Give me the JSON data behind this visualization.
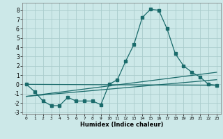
{
  "xlabel": "Humidex (Indice chaleur)",
  "bg_color": "#cce8e8",
  "grid_color": "#aacccc",
  "line_color": "#1a6b6b",
  "xlim": [
    -0.5,
    23.5
  ],
  "ylim": [
    -3.2,
    8.8
  ],
  "xticks": [
    0,
    1,
    2,
    3,
    4,
    5,
    6,
    7,
    8,
    9,
    10,
    11,
    12,
    13,
    14,
    15,
    16,
    17,
    18,
    19,
    20,
    21,
    22,
    23
  ],
  "yticks": [
    -3,
    -2,
    -1,
    0,
    1,
    2,
    3,
    4,
    5,
    6,
    7,
    8
  ],
  "series1_x": [
    0,
    1,
    2,
    3,
    4,
    5,
    6,
    7,
    8,
    9,
    10,
    11,
    12,
    13,
    14,
    15,
    16,
    17,
    18,
    19,
    20,
    21,
    22,
    23
  ],
  "series1_y": [
    0.0,
    -0.8,
    -1.8,
    -2.3,
    -2.3,
    -1.4,
    -1.8,
    -1.8,
    -1.8,
    -2.2,
    0.0,
    0.5,
    2.5,
    4.3,
    7.2,
    8.1,
    8.0,
    6.0,
    3.3,
    2.0,
    1.3,
    0.8,
    0.0,
    -0.1
  ],
  "series2_x": [
    0,
    23
  ],
  "series2_y": [
    0.0,
    -0.1
  ],
  "series3_x": [
    0,
    23
  ],
  "series3_y": [
    -1.3,
    1.3
  ],
  "series4_x": [
    0,
    23
  ],
  "series4_y": [
    -1.3,
    0.5
  ]
}
